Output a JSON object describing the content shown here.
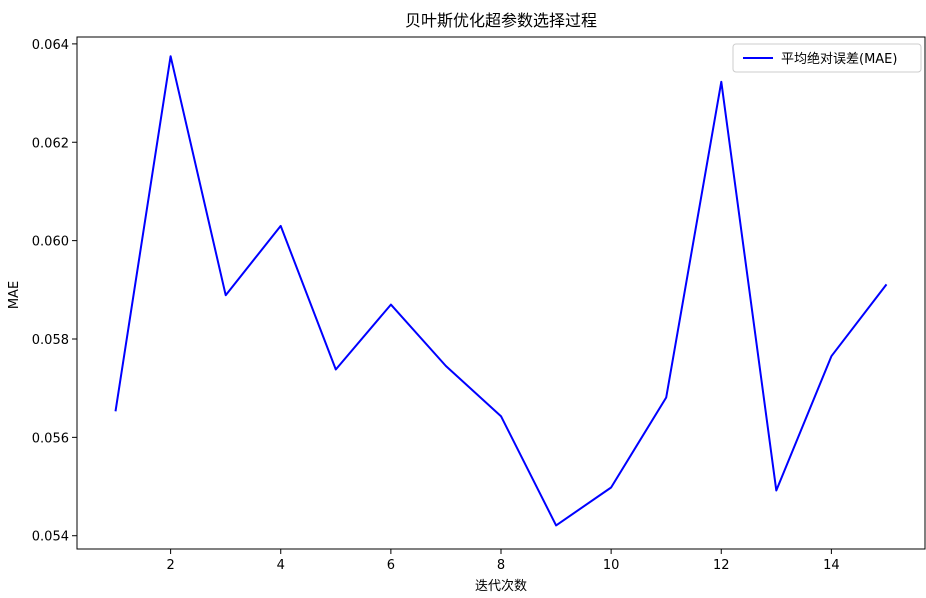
{
  "chart_data": {
    "type": "line",
    "title": "贝叶斯优化超参数选择过程",
    "xlabel": "迭代次数",
    "ylabel": "MAE",
    "x": [
      1,
      2,
      3,
      4,
      5,
      6,
      7,
      8,
      9,
      10,
      11,
      12,
      13,
      14,
      15
    ],
    "series": [
      {
        "name": "平均绝对误差(MAE)",
        "color": "#0000ff",
        "values": [
          0.05653,
          0.06375,
          0.05889,
          0.0603,
          0.05738,
          0.0587,
          0.05745,
          0.05643,
          0.05421,
          0.05498,
          0.05681,
          0.06323,
          0.05492,
          0.05765,
          0.05911
        ]
      }
    ],
    "xticks": [
      2,
      4,
      6,
      8,
      10,
      12,
      14
    ],
    "xtick_labels": [
      "2",
      "4",
      "6",
      "8",
      "10",
      "12",
      "14"
    ],
    "yticks": [
      0.054,
      0.056,
      0.058,
      0.06,
      0.062,
      0.064
    ],
    "ytick_labels": [
      "0.054",
      "0.056",
      "0.058",
      "0.060",
      "0.062",
      "0.064"
    ],
    "xlim": [
      0.3,
      15.7
    ],
    "ylim": [
      0.05373,
      0.06414
    ],
    "grid": false,
    "legend_position": "top-right"
  }
}
